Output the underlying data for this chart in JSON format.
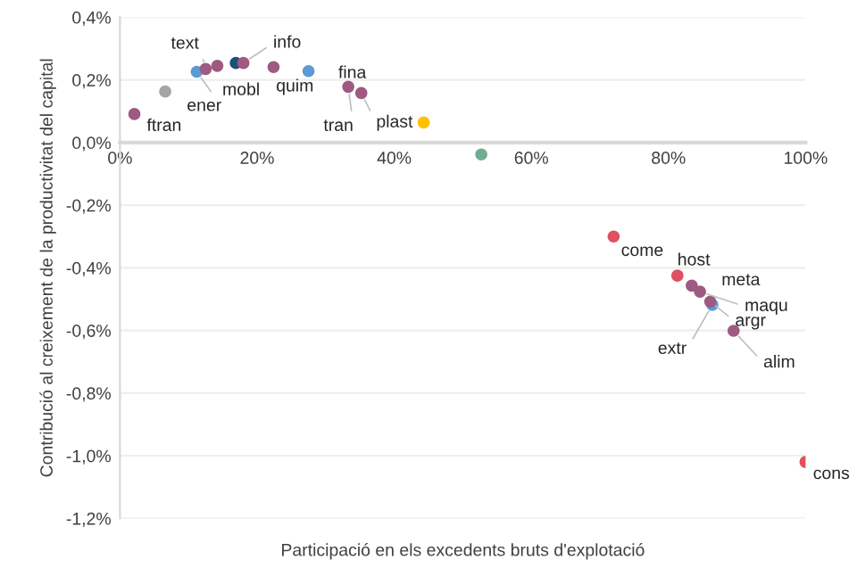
{
  "chart_data": {
    "type": "scatter",
    "xlabel": "Participació en els excedents bruts d'explotació",
    "ylabel": "Contribució al creixement de la productivitat del capital",
    "x": [
      2.1,
      6.6,
      11.2,
      12.5,
      14.2,
      16.9,
      18.0,
      22.4,
      27.5,
      33.3,
      35.2,
      44.3,
      52.7,
      72.0,
      81.3,
      83.4,
      84.6,
      86.4,
      86.1,
      89.5,
      100
    ],
    "values": [
      0.091,
      0.163,
      0.226,
      0.235,
      0.245,
      0.254,
      0.254,
      0.241,
      0.228,
      0.178,
      0.158,
      0.064,
      -0.038,
      -0.3,
      -0.425,
      -0.457,
      -0.476,
      -0.518,
      -0.508,
      -0.601,
      -1.02
    ],
    "colors": [
      "#9e5a80",
      "#a5a5a5",
      "#5b9bd5",
      "#9e5a80",
      "#9e5a80",
      "#1f4e79",
      "#9e5a80",
      "#9e5a80",
      "#5b9bd5",
      "#9e5a80",
      "#9e5a80",
      "#ffc000",
      "#70ad90",
      "#e05060",
      "#e05060",
      "#9e5a80",
      "#9e5a80",
      "#5b9bd5",
      "#9e5a80",
      "#9e5a80",
      "#e05060"
    ],
    "annotations": [
      {
        "text": "ftran",
        "x": 2.1,
        "y": 0.091
      },
      {
        "text": "ener",
        "x": 11.2,
        "y": 0.226
      },
      {
        "text": "text",
        "x": 12.5,
        "y": 0.235
      },
      {
        "text": "mobl",
        "x": 14.2,
        "y": 0.245
      },
      {
        "text": "info",
        "x": 18.0,
        "y": 0.254
      },
      {
        "text": "quim",
        "x": 22.4,
        "y": 0.241
      },
      {
        "text": "fina",
        "x": 27.5,
        "y": 0.228
      },
      {
        "text": "tran",
        "x": 33.3,
        "y": 0.178
      },
      {
        "text": "plast",
        "x": 35.2,
        "y": 0.158
      },
      {
        "text": "come",
        "x": 72.0,
        "y": -0.3
      },
      {
        "text": "host",
        "x": 81.3,
        "y": -0.425
      },
      {
        "text": "meta",
        "x": 83.4,
        "y": -0.457
      },
      {
        "text": "maqu",
        "x": 84.6,
        "y": -0.476
      },
      {
        "text": "argr",
        "x": 86.1,
        "y": -0.508
      },
      {
        "text": "extr",
        "x": 86.4,
        "y": -0.518
      },
      {
        "text": "alim",
        "x": 89.5,
        "y": -0.601
      },
      {
        "text": "cons",
        "x": 100,
        "y": -1.02
      }
    ],
    "xlim": [
      0,
      100
    ],
    "xticks": [
      {
        "value": 0,
        "label": "0%"
      },
      {
        "value": 20,
        "label": "20%"
      },
      {
        "value": 40,
        "label": "40%"
      },
      {
        "value": 60,
        "label": "60%"
      },
      {
        "value": 80,
        "label": "80%"
      },
      {
        "value": 100,
        "label": "100%"
      }
    ],
    "ylim": [
      -1.2,
      0.4
    ],
    "yticks": [
      {
        "value": -1.2,
        "label": "-1,2%"
      },
      {
        "value": -1.0,
        "label": "-1,0%"
      },
      {
        "value": -0.8,
        "label": "-0,8%"
      },
      {
        "value": -0.6,
        "label": "-0,6%"
      },
      {
        "value": -0.4,
        "label": "-0,4%"
      },
      {
        "value": -0.2,
        "label": "-0,2%"
      },
      {
        "value": 0.0,
        "label": "0,0%"
      },
      {
        "value": 0.2,
        "label": "0,2%"
      },
      {
        "value": 0.4,
        "label": "0,4%"
      }
    ],
    "grid": "y",
    "marker": "circle",
    "legend": false
  }
}
